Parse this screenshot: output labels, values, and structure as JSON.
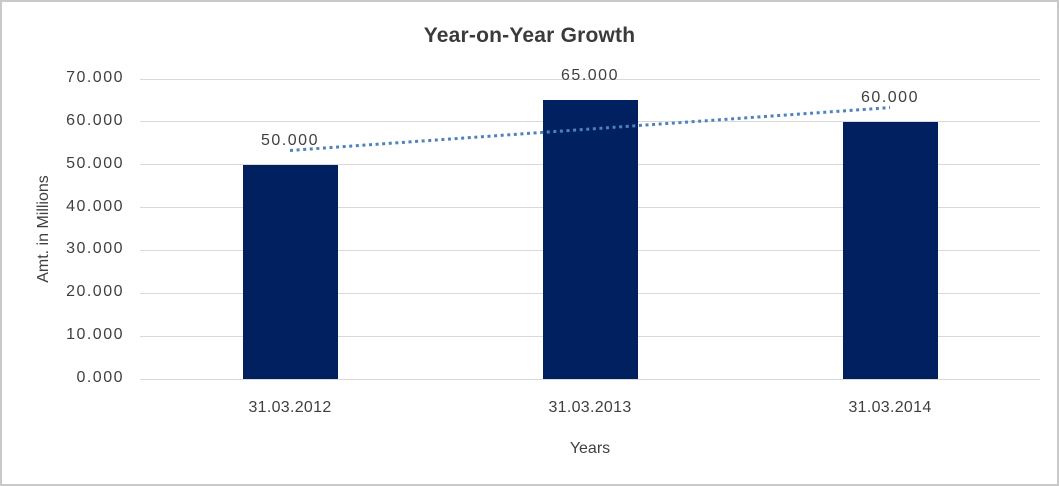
{
  "chart_data": {
    "type": "bar",
    "title": "Year-on-Year Growth",
    "categories": [
      "31.03.2012",
      "31.03.2013",
      "31.03.2014"
    ],
    "values": [
      50,
      65,
      60
    ],
    "data_labels": [
      "50.000",
      "65.000",
      "60.000"
    ],
    "xlabel": "Years",
    "ylabel": "Amt. in Millions",
    "ylim": [
      0,
      70
    ],
    "ytick_step": 10,
    "yticks": [
      {
        "value": 0,
        "label": "0.000"
      },
      {
        "value": 10,
        "label": "10.000"
      },
      {
        "value": 20,
        "label": "20.000"
      },
      {
        "value": 30,
        "label": "30.000"
      },
      {
        "value": 40,
        "label": "40.000"
      },
      {
        "value": 50,
        "label": "50.000"
      },
      {
        "value": 60,
        "label": "60.000"
      },
      {
        "value": 70,
        "label": "70.000"
      }
    ],
    "grid": true,
    "legend": "none",
    "colors": {
      "bar": "#002060",
      "trendline": "#4f81bd",
      "gridline": "#d9d9d9",
      "text": "#404040",
      "title": "#3b3b3b",
      "frame_border": "#c9c9c9",
      "background": "#ffffff"
    },
    "trendline": {
      "type": "linear",
      "style": "dotted",
      "start_value": 53.33,
      "end_value": 63.33
    }
  }
}
